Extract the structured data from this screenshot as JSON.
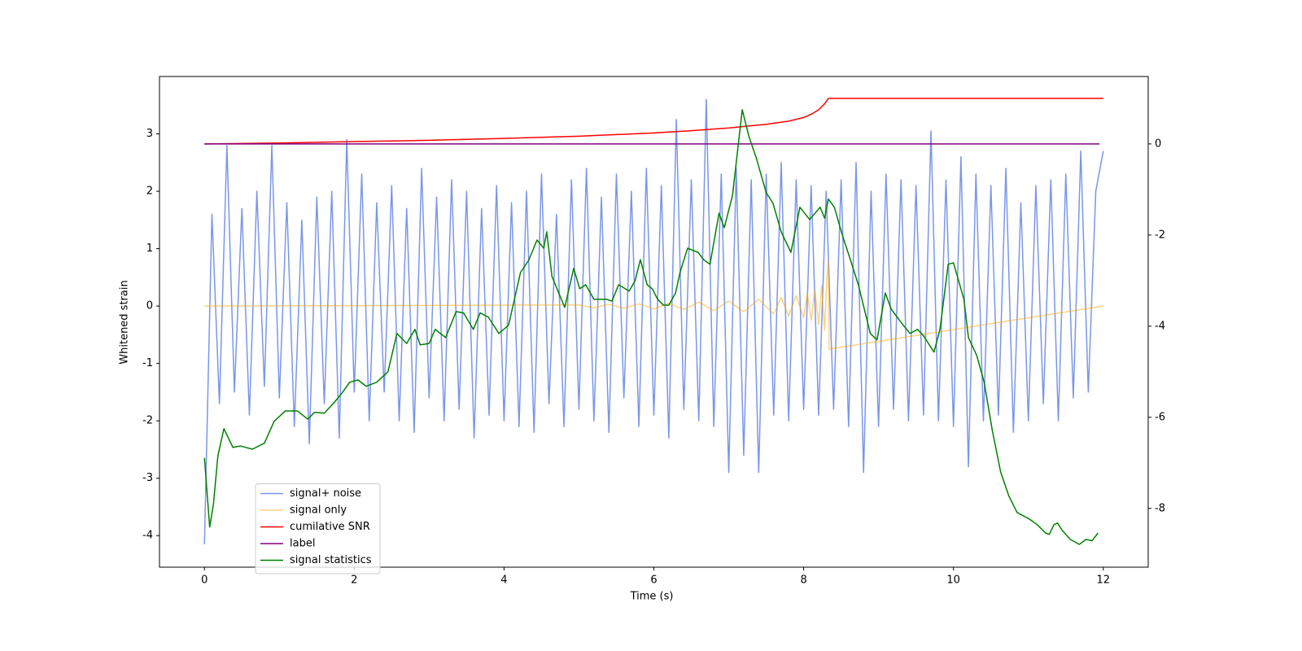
{
  "chart_data": {
    "type": "line",
    "xlabel": "Time (s)",
    "ylabel": "Whitened strain",
    "xlim": [
      -0.6,
      12.6
    ],
    "xticks": [
      0,
      2,
      4,
      6,
      8,
      10,
      12
    ],
    "ylim": [
      -4.55,
      4.0
    ],
    "yticks": [
      -4,
      -3,
      -2,
      -1,
      0,
      1,
      2,
      3
    ],
    "y2lim": [
      -9.29,
      1.48
    ],
    "y2ticks": [
      -8,
      -6,
      -4,
      -2,
      0
    ],
    "legend": "lower left",
    "series": [
      {
        "name": "signal+ noise",
        "color": "#4169e1",
        "alpha": 0.7,
        "x": [
          0,
          0.1,
          0.2,
          0.3,
          0.4,
          0.5,
          0.6,
          0.7,
          0.8,
          0.9,
          1,
          1.1,
          1.2,
          1.3,
          1.4,
          1.5,
          1.6,
          1.7,
          1.8,
          1.9,
          2,
          2.1,
          2.2,
          2.3,
          2.4,
          2.5,
          2.6,
          2.7,
          2.8,
          2.9,
          3,
          3.1,
          3.2,
          3.3,
          3.4,
          3.5,
          3.6,
          3.7,
          3.8,
          3.9,
          4,
          4.1,
          4.2,
          4.3,
          4.4,
          4.5,
          4.6,
          4.7,
          4.8,
          4.9,
          5,
          5.1,
          5.2,
          5.3,
          5.4,
          5.5,
          5.6,
          5.7,
          5.8,
          5.9,
          6,
          6.1,
          6.2,
          6.3,
          6.4,
          6.5,
          6.6,
          6.7,
          6.8,
          6.9,
          7,
          7.1,
          7.2,
          7.3,
          7.4,
          7.5,
          7.6,
          7.7,
          7.8,
          7.9,
          8,
          8.1,
          8.2,
          8.3,
          8.4,
          8.5,
          8.6,
          8.7,
          8.8,
          8.9,
          9,
          9.1,
          9.2,
          9.3,
          9.4,
          9.5,
          9.6,
          9.7,
          9.8,
          9.9,
          10,
          10.1,
          10.2,
          10.3,
          10.4,
          10.5,
          10.6,
          10.7,
          10.8,
          10.9,
          11,
          11.1,
          11.2,
          11.3,
          11.4,
          11.5,
          11.6,
          11.7,
          11.8,
          11.9,
          12
        ],
        "values": [
          -4.15,
          1.6,
          -1.7,
          2.8,
          -1.5,
          1.7,
          -1.9,
          2.0,
          -1.4,
          2.8,
          -1.6,
          1.8,
          -2.1,
          1.5,
          -2.4,
          1.9,
          -1.7,
          2.0,
          -2.3,
          2.9,
          -1.5,
          2.3,
          -2.0,
          1.8,
          -1.5,
          2.1,
          -2.0,
          1.7,
          -2.2,
          2.4,
          -1.6,
          1.9,
          -2.0,
          2.2,
          -1.8,
          2.0,
          -2.3,
          1.7,
          -1.9,
          2.1,
          -2.0,
          1.8,
          -2.1,
          2.0,
          -2.2,
          2.3,
          -1.7,
          1.6,
          -2.1,
          2.2,
          -1.8,
          2.4,
          -2.0,
          1.9,
          -2.2,
          2.3,
          -1.6,
          2.0,
          -2.1,
          2.4,
          -1.9,
          2.1,
          -2.3,
          3.25,
          -1.8,
          2.2,
          -2.0,
          3.6,
          -2.1,
          2.3,
          -2.9,
          2.4,
          -2.6,
          2.2,
          -2.9,
          2.3,
          -1.9,
          2.5,
          -2.0,
          2.2,
          -1.8,
          2.1,
          -1.9,
          2.0,
          -1.8,
          2.2,
          -2.1,
          2.5,
          -2.9,
          2.0,
          -2.1,
          2.3,
          -1.8,
          2.2,
          -2.0,
          2.1,
          -1.9,
          3.05,
          -2.0,
          2.2,
          -2.1,
          2.6,
          -2.8,
          2.3,
          -2.0,
          2.1,
          -1.9,
          2.4,
          -2.2,
          1.8,
          -2.0,
          2.1,
          -1.7,
          2.2,
          -2.0,
          2.3,
          -1.6,
          2.7,
          -1.5,
          2.0,
          2.7
        ]
      },
      {
        "name": "signal only",
        "color": "orange",
        "alpha": 0.5,
        "x": [
          0,
          5.0,
          5.2,
          5.4,
          5.6,
          5.8,
          6.0,
          6.2,
          6.4,
          6.6,
          6.8,
          7.0,
          7.2,
          7.4,
          7.6,
          7.7,
          7.8,
          7.9,
          8.0,
          8.05,
          8.1,
          8.15,
          8.2,
          8.24,
          8.28,
          8.31,
          8.33,
          8.34,
          12
        ],
        "values": [
          0,
          0.02,
          -0.03,
          0.03,
          -0.04,
          0.04,
          -0.05,
          0.05,
          -0.06,
          0.07,
          -0.08,
          0.09,
          -0.1,
          0.12,
          -0.14,
          0.15,
          -0.17,
          0.18,
          -0.2,
          0.22,
          -0.25,
          0.28,
          -0.32,
          0.36,
          -0.42,
          0.5,
          0.78,
          -0.75,
          0
        ]
      },
      {
        "name": "cumilative SNR",
        "color": "red",
        "axis": "y2",
        "x": [
          0,
          1,
          2,
          3,
          4,
          5,
          6,
          6.5,
          7,
          7.5,
          7.8,
          8,
          8.1,
          8.2,
          8.28,
          8.33,
          12
        ],
        "values": [
          0,
          0.02,
          0.05,
          0.08,
          0.12,
          0.17,
          0.24,
          0.29,
          0.35,
          0.43,
          0.5,
          0.58,
          0.65,
          0.75,
          0.88,
          1.0,
          1.0
        ]
      },
      {
        "name": "label",
        "color": "purple",
        "axis": "y2",
        "x": [
          0,
          11.95
        ],
        "values": [
          0,
          0
        ]
      },
      {
        "name": "signal statistics",
        "color": "green",
        "axis": "y2",
        "x": [
          0,
          0.07,
          0.12,
          0.18,
          0.26,
          0.38,
          0.48,
          0.64,
          0.8,
          0.93,
          1.08,
          1.24,
          1.38,
          1.47,
          1.6,
          1.73,
          1.84,
          1.94,
          2.05,
          2.16,
          2.3,
          2.45,
          2.57,
          2.7,
          2.81,
          2.88,
          3.0,
          3.08,
          3.22,
          3.36,
          3.46,
          3.59,
          3.68,
          3.79,
          3.93,
          4.06,
          4.22,
          4.33,
          4.44,
          4.53,
          4.57,
          4.64,
          4.81,
          4.93,
          5.01,
          5.09,
          5.2,
          5.37,
          5.44,
          5.53,
          5.67,
          5.75,
          5.82,
          5.91,
          5.98,
          6.05,
          6.13,
          6.2,
          6.29,
          6.35,
          6.45,
          6.59,
          6.67,
          6.75,
          6.87,
          6.94,
          7.05,
          7.18,
          7.27,
          7.37,
          7.5,
          7.59,
          7.7,
          7.83,
          7.95,
          8.08,
          8.22,
          8.28,
          8.33,
          8.41,
          8.52,
          8.62,
          8.73,
          8.89,
          8.98,
          9.09,
          9.17,
          9.33,
          9.42,
          9.52,
          9.6,
          9.74,
          9.82,
          9.93,
          10.0,
          10.14,
          10.2,
          10.31,
          10.41,
          10.52,
          10.63,
          10.74,
          10.85,
          11.01,
          11.12,
          11.23,
          11.28,
          11.34,
          11.39,
          11.45,
          11.56,
          11.68,
          11.77,
          11.85,
          11.93
        ],
        "values": [
          -6.89,
          -8.41,
          -7.91,
          -6.84,
          -6.25,
          -6.66,
          -6.63,
          -6.7,
          -6.57,
          -6.09,
          -5.86,
          -5.86,
          -6.04,
          -5.89,
          -5.91,
          -5.68,
          -5.46,
          -5.23,
          -5.18,
          -5.32,
          -5.23,
          -5.0,
          -4.16,
          -4.38,
          -4.07,
          -4.41,
          -4.38,
          -4.07,
          -4.25,
          -3.68,
          -3.71,
          -4.07,
          -3.71,
          -3.8,
          -4.16,
          -3.98,
          -2.82,
          -2.55,
          -2.11,
          -2.29,
          -1.93,
          -2.91,
          -3.59,
          -2.73,
          -3.18,
          -3.09,
          -3.41,
          -3.41,
          -3.45,
          -3.09,
          -3.23,
          -3.0,
          -2.54,
          -3.09,
          -3.18,
          -3.41,
          -3.54,
          -3.54,
          -3.27,
          -2.82,
          -2.29,
          -2.38,
          -2.55,
          -2.64,
          -1.52,
          -1.84,
          -1.13,
          0.75,
          0.16,
          -0.32,
          -1.07,
          -1.3,
          -1.93,
          -2.38,
          -1.39,
          -1.66,
          -1.39,
          -1.63,
          -1.21,
          -1.39,
          -2.02,
          -2.52,
          -3.09,
          -4.16,
          -4.3,
          -3.27,
          -3.63,
          -3.98,
          -4.16,
          -4.07,
          -4.21,
          -4.57,
          -4.07,
          -2.64,
          -2.61,
          -3.41,
          -4.25,
          -4.64,
          -5.23,
          -6.3,
          -7.2,
          -7.73,
          -8.09,
          -8.23,
          -8.36,
          -8.54,
          -8.57,
          -8.36,
          -8.32,
          -8.48,
          -8.68,
          -8.79,
          -8.68,
          -8.71,
          -8.54
        ]
      }
    ]
  }
}
